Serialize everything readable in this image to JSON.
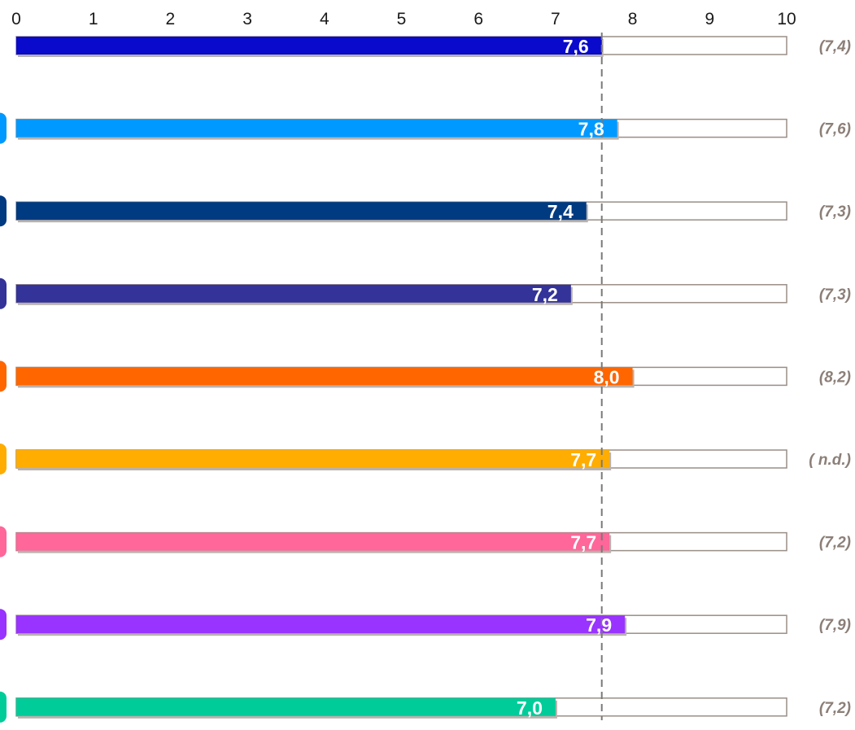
{
  "chart_data": {
    "type": "bar",
    "orientation": "horizontal",
    "xlim": [
      0,
      10
    ],
    "x_ticks": [
      "0",
      "1",
      "2",
      "3",
      "4",
      "5",
      "6",
      "7",
      "8",
      "9",
      "10"
    ],
    "reference_line": 7.6,
    "grid": false,
    "legend": "none",
    "series": [
      {
        "value": 7.6,
        "label": "7,6",
        "previous": "(7,4)",
        "color": "#0a0acc"
      },
      {
        "value": 7.8,
        "label": "7,8",
        "previous": "(7,6)",
        "color": "#0099ff"
      },
      {
        "value": 7.4,
        "label": "7,4",
        "previous": "(7,3)",
        "color": "#003a80"
      },
      {
        "value": 7.2,
        "label": "7,2",
        "previous": "(7,3)",
        "color": "#333399"
      },
      {
        "value": 8.0,
        "label": "8,0",
        "previous": "(8,2)",
        "color": "#ff6600"
      },
      {
        "value": 7.7,
        "label": "7,7",
        "previous": "( n.d.)",
        "color": "#ffad00"
      },
      {
        "value": 7.7,
        "label": "7,7",
        "previous": "(7,2)",
        "color": "#ff6699"
      },
      {
        "value": 7.9,
        "label": "7,9",
        "previous": "(7,9)",
        "color": "#9933ff"
      },
      {
        "value": 7.0,
        "label": "7,0",
        "previous": "(7,2)",
        "color": "#00cc99"
      }
    ]
  }
}
